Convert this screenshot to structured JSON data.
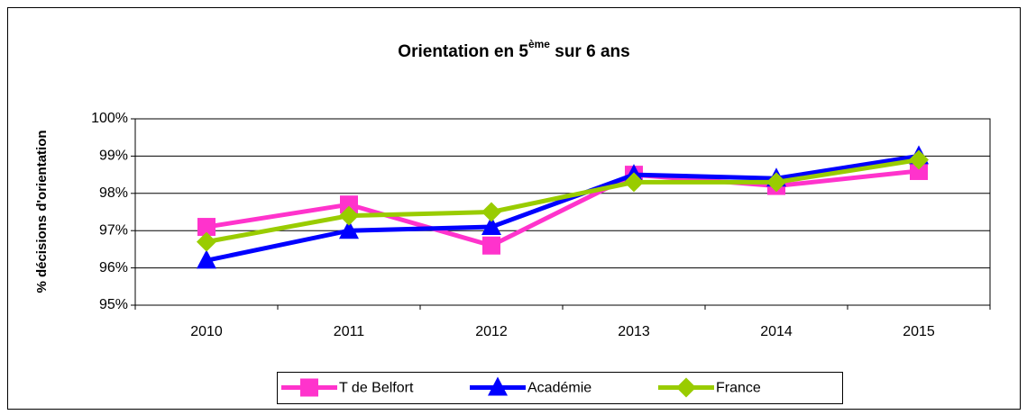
{
  "chart_data": {
    "type": "line",
    "title": [
      "Orientation en 5",
      "ème",
      " sur 6 ans"
    ],
    "y_label": "% décisions d'orientation",
    "categories": [
      "2010",
      "2011",
      "2012",
      "2013",
      "2014",
      "2015"
    ],
    "series": [
      {
        "name": "T de Belfort",
        "color": "#ff33cc",
        "marker": "square",
        "values": [
          97.1,
          97.7,
          96.6,
          98.5,
          98.2,
          98.6
        ]
      },
      {
        "name": "Académie",
        "color": "#0000ff",
        "marker": "triangle",
        "values": [
          96.2,
          97.0,
          97.1,
          98.5,
          98.4,
          99.0
        ]
      },
      {
        "name": "France",
        "color": "#99cc00",
        "marker": "diamond",
        "values": [
          96.7,
          97.4,
          97.5,
          98.3,
          98.3,
          98.9
        ]
      }
    ],
    "ylim": [
      95,
      100
    ],
    "yticks": [
      {
        "value": 95,
        "label": "95%"
      },
      {
        "value": 96,
        "label": "96%"
      },
      {
        "value": 97,
        "label": "97%"
      },
      {
        "value": 98,
        "label": "98%"
      },
      {
        "value": 99,
        "label": "99%"
      },
      {
        "value": 100,
        "label": "100%"
      }
    ],
    "grid": true,
    "legend": "bottom"
  }
}
